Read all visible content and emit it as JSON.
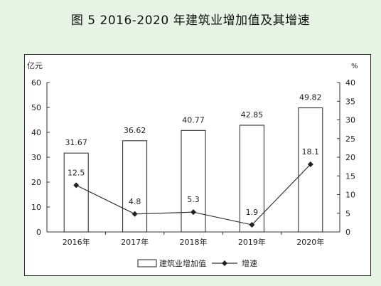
{
  "title": "图 5  2016-2020 年建筑业增加值及其增速",
  "chart_data": {
    "type": "bar",
    "categories": [
      "2016年",
      "2017年",
      "2018年",
      "2019年",
      "2020年"
    ],
    "series": [
      {
        "name": "建筑业增加值",
        "type": "bar",
        "axis": "left",
        "values": [
          31.67,
          36.62,
          40.77,
          42.85,
          49.82
        ]
      },
      {
        "name": "增速",
        "type": "line",
        "axis": "right",
        "values": [
          12.5,
          4.8,
          5.3,
          1.9,
          18.1
        ]
      }
    ],
    "ylabel_left": "亿元",
    "ylabel_right": "%",
    "ylim_left": [
      0,
      60
    ],
    "yticks_left": [
      0,
      10,
      20,
      30,
      40,
      50,
      60
    ],
    "ylim_right": [
      0,
      40
    ],
    "yticks_right": [
      0,
      5,
      10,
      15,
      20,
      25,
      30,
      35,
      40
    ],
    "bar_labels": [
      "31.67",
      "36.62",
      "40.77",
      "42.85",
      "49.82"
    ],
    "line_labels": [
      "12.5",
      "4.8",
      "5.3",
      "1.9",
      "18.1"
    ],
    "grid": false,
    "legend_position": "bottom"
  }
}
